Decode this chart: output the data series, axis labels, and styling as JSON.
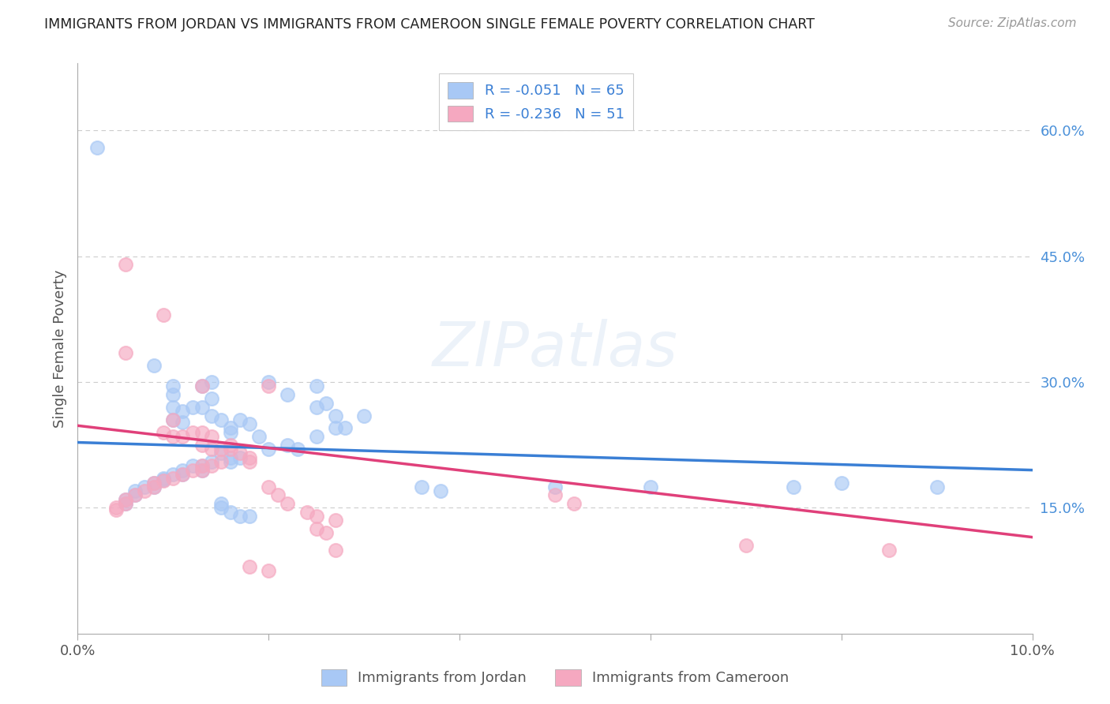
{
  "title": "IMMIGRANTS FROM JORDAN VS IMMIGRANTS FROM CAMEROON SINGLE FEMALE POVERTY CORRELATION CHART",
  "source": "Source: ZipAtlas.com",
  "ylabel": "Single Female Poverty",
  "legend_label1": "Immigrants from Jordan",
  "legend_label2": "Immigrants from Cameroon",
  "R1": -0.051,
  "N1": 65,
  "R2": -0.236,
  "N2": 51,
  "jordan_color": "#a8c8f5",
  "cameroon_color": "#f5a8c0",
  "jordan_line_color": "#3a7fd5",
  "cameroon_line_color": "#e0407a",
  "jordan_scatter": [
    [
      0.002,
      0.58
    ],
    [
      0.008,
      0.32
    ],
    [
      0.01,
      0.295
    ],
    [
      0.01,
      0.285
    ],
    [
      0.01,
      0.27
    ],
    [
      0.012,
      0.27
    ],
    [
      0.013,
      0.27
    ],
    [
      0.011,
      0.265
    ],
    [
      0.014,
      0.26
    ],
    [
      0.01,
      0.255
    ],
    [
      0.011,
      0.252
    ],
    [
      0.014,
      0.3
    ],
    [
      0.013,
      0.295
    ],
    [
      0.015,
      0.255
    ],
    [
      0.016,
      0.245
    ],
    [
      0.014,
      0.28
    ],
    [
      0.017,
      0.255
    ],
    [
      0.016,
      0.24
    ],
    [
      0.018,
      0.25
    ],
    [
      0.019,
      0.235
    ],
    [
      0.022,
      0.285
    ],
    [
      0.02,
      0.3
    ],
    [
      0.025,
      0.295
    ],
    [
      0.026,
      0.275
    ],
    [
      0.025,
      0.27
    ],
    [
      0.027,
      0.26
    ],
    [
      0.027,
      0.245
    ],
    [
      0.03,
      0.26
    ],
    [
      0.028,
      0.245
    ],
    [
      0.025,
      0.235
    ],
    [
      0.022,
      0.225
    ],
    [
      0.02,
      0.22
    ],
    [
      0.023,
      0.22
    ],
    [
      0.015,
      0.215
    ],
    [
      0.016,
      0.21
    ],
    [
      0.017,
      0.21
    ],
    [
      0.016,
      0.205
    ],
    [
      0.014,
      0.205
    ],
    [
      0.013,
      0.2
    ],
    [
      0.012,
      0.2
    ],
    [
      0.011,
      0.195
    ],
    [
      0.013,
      0.195
    ],
    [
      0.011,
      0.19
    ],
    [
      0.01,
      0.19
    ],
    [
      0.009,
      0.185
    ],
    [
      0.009,
      0.183
    ],
    [
      0.008,
      0.18
    ],
    [
      0.008,
      0.175
    ],
    [
      0.007,
      0.175
    ],
    [
      0.006,
      0.17
    ],
    [
      0.006,
      0.165
    ],
    [
      0.005,
      0.16
    ],
    [
      0.005,
      0.155
    ],
    [
      0.015,
      0.155
    ],
    [
      0.015,
      0.15
    ],
    [
      0.016,
      0.145
    ],
    [
      0.017,
      0.14
    ],
    [
      0.018,
      0.14
    ],
    [
      0.036,
      0.175
    ],
    [
      0.038,
      0.17
    ],
    [
      0.05,
      0.175
    ],
    [
      0.06,
      0.175
    ],
    [
      0.075,
      0.175
    ],
    [
      0.08,
      0.18
    ],
    [
      0.09,
      0.175
    ]
  ],
  "cameroon_scatter": [
    [
      0.005,
      0.44
    ],
    [
      0.009,
      0.38
    ],
    [
      0.013,
      0.295
    ],
    [
      0.02,
      0.295
    ],
    [
      0.005,
      0.335
    ],
    [
      0.01,
      0.255
    ],
    [
      0.009,
      0.24
    ],
    [
      0.01,
      0.235
    ],
    [
      0.011,
      0.235
    ],
    [
      0.012,
      0.24
    ],
    [
      0.013,
      0.24
    ],
    [
      0.014,
      0.235
    ],
    [
      0.013,
      0.225
    ],
    [
      0.014,
      0.22
    ],
    [
      0.016,
      0.225
    ],
    [
      0.015,
      0.22
    ],
    [
      0.016,
      0.22
    ],
    [
      0.017,
      0.215
    ],
    [
      0.018,
      0.21
    ],
    [
      0.018,
      0.205
    ],
    [
      0.015,
      0.205
    ],
    [
      0.014,
      0.2
    ],
    [
      0.013,
      0.2
    ],
    [
      0.013,
      0.195
    ],
    [
      0.012,
      0.195
    ],
    [
      0.011,
      0.19
    ],
    [
      0.01,
      0.185
    ],
    [
      0.009,
      0.182
    ],
    [
      0.008,
      0.18
    ],
    [
      0.008,
      0.175
    ],
    [
      0.007,
      0.17
    ],
    [
      0.006,
      0.165
    ],
    [
      0.005,
      0.16
    ],
    [
      0.005,
      0.155
    ],
    [
      0.004,
      0.15
    ],
    [
      0.004,
      0.148
    ],
    [
      0.02,
      0.175
    ],
    [
      0.021,
      0.165
    ],
    [
      0.022,
      0.155
    ],
    [
      0.024,
      0.145
    ],
    [
      0.025,
      0.14
    ],
    [
      0.027,
      0.135
    ],
    [
      0.025,
      0.125
    ],
    [
      0.026,
      0.12
    ],
    [
      0.027,
      0.1
    ],
    [
      0.018,
      0.08
    ],
    [
      0.02,
      0.075
    ],
    [
      0.05,
      0.165
    ],
    [
      0.052,
      0.155
    ],
    [
      0.07,
      0.105
    ],
    [
      0.085,
      0.1
    ]
  ],
  "xlim": [
    0.0,
    0.1
  ],
  "ylim": [
    0.0,
    0.68
  ],
  "yticks_right": [
    0.15,
    0.3,
    0.45,
    0.6
  ],
  "ytick_labels_right": [
    "15.0%",
    "30.0%",
    "45.0%",
    "60.0%"
  ],
  "jordan_line": [
    [
      0.0,
      0.228
    ],
    [
      0.1,
      0.195
    ]
  ],
  "cameroon_line": [
    [
      0.0,
      0.248
    ],
    [
      0.1,
      0.115
    ]
  ],
  "background_color": "#ffffff",
  "grid_color": "#cccccc",
  "title_color": "#222222",
  "axis_color": "#aaaaaa"
}
